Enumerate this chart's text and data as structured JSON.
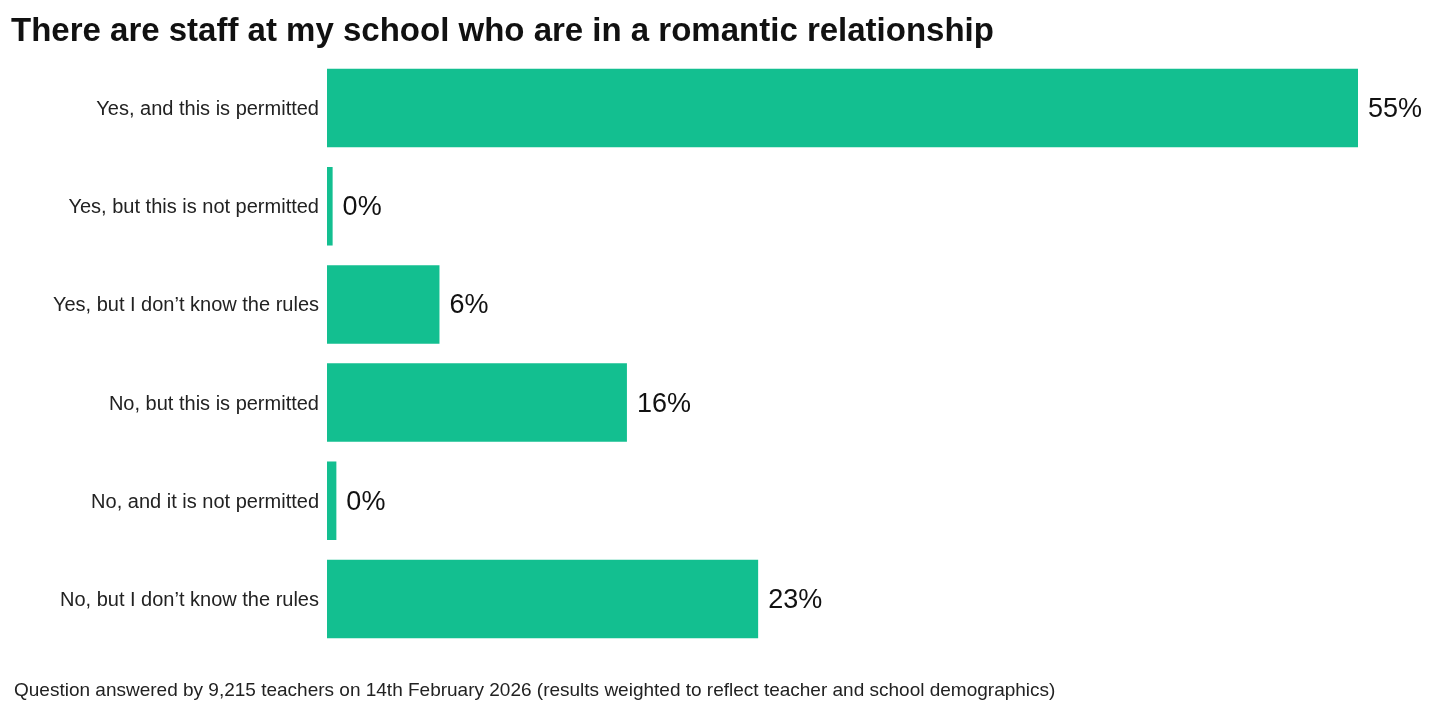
{
  "chart_data": {
    "type": "bar",
    "orientation": "horizontal",
    "title": "There are staff at my school who are in a romantic relationship",
    "categories": [
      "Yes, and this is permitted",
      "Yes, but this is not permitted",
      "Yes, but I don’t know the rules",
      "No, but this is permitted",
      "No, and it is not permitted",
      "No, but I don’t know the rules"
    ],
    "values": [
      55,
      0.3,
      6,
      16,
      0.5,
      23
    ],
    "value_labels": [
      "55%",
      "0%",
      "6%",
      "16%",
      "0%",
      "23%"
    ],
    "color": "#13bf90",
    "annotations": [
      "Question answered by 9,215 teachers on 14th February 2026 (results weighted to reflect teacher and school demographics)"
    ]
  }
}
